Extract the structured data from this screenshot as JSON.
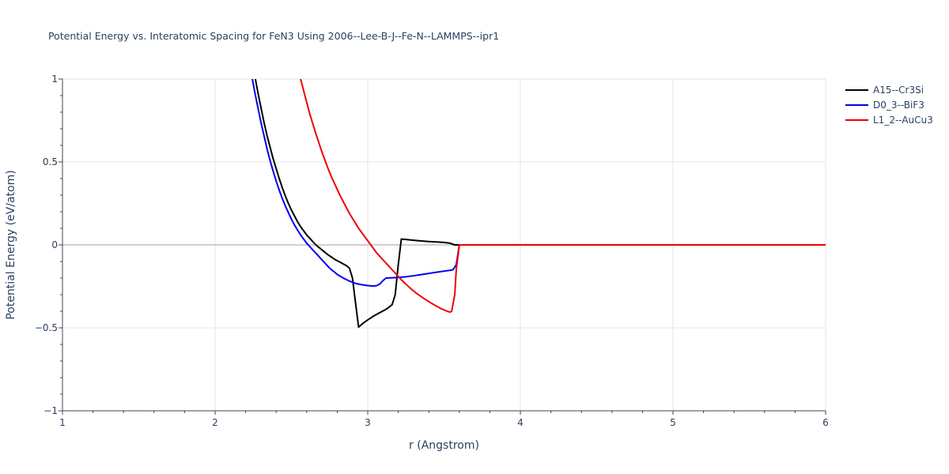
{
  "chart_data": {
    "type": "line",
    "title": "Potential Energy vs. Interatomic Spacing for FeN3 Using 2006--Lee-B-J--Fe-N--LAMMPS--ipr1",
    "xlabel": "r (Angstrom)",
    "ylabel": "Potential Energy (eV/atom)",
    "xlim": [
      1,
      6
    ],
    "ylim": [
      -1,
      1
    ],
    "xticks": [
      1,
      2,
      3,
      4,
      5,
      6
    ],
    "xtick_labels": [
      "1",
      "2",
      "3",
      "4",
      "5",
      "6"
    ],
    "yticks": [
      -1,
      -0.5,
      0,
      0.5,
      1
    ],
    "ytick_labels": [
      "−1",
      "−0.5",
      "0",
      "0.5",
      "1"
    ],
    "grid": true,
    "legend_position": "top-right",
    "series": [
      {
        "name": "A15--Cr3Si",
        "color": "#000000",
        "x": [
          2.26,
          2.28,
          2.3,
          2.32,
          2.34,
          2.36,
          2.38,
          2.4,
          2.42,
          2.44,
          2.46,
          2.48,
          2.5,
          2.52,
          2.54,
          2.56,
          2.58,
          2.6,
          2.62,
          2.64,
          2.66,
          2.68,
          2.7,
          2.72,
          2.74,
          2.76,
          2.78,
          2.8,
          2.82,
          2.84,
          2.86,
          2.88,
          2.9,
          2.92,
          2.94,
          2.96,
          2.98,
          3.0,
          3.02,
          3.04,
          3.06,
          3.08,
          3.1,
          3.12,
          3.14,
          3.16,
          3.18,
          3.2,
          3.22,
          3.25,
          3.3,
          3.35,
          3.4,
          3.45,
          3.5,
          3.54,
          3.57,
          3.6,
          3.7,
          4.0,
          4.5,
          5.0,
          5.5,
          6.0
        ],
        "y": [
          1.02,
          0.92,
          0.83,
          0.74,
          0.66,
          0.59,
          0.52,
          0.46,
          0.4,
          0.345,
          0.295,
          0.25,
          0.21,
          0.175,
          0.14,
          0.11,
          0.085,
          0.06,
          0.04,
          0.02,
          0.0,
          -0.015,
          -0.03,
          -0.045,
          -0.06,
          -0.072,
          -0.085,
          -0.095,
          -0.105,
          -0.115,
          -0.125,
          -0.14,
          -0.2,
          -0.35,
          -0.495,
          -0.48,
          -0.465,
          -0.452,
          -0.44,
          -0.428,
          -0.418,
          -0.408,
          -0.398,
          -0.388,
          -0.375,
          -0.36,
          -0.3,
          -0.12,
          0.035,
          0.033,
          0.028,
          0.024,
          0.02,
          0.018,
          0.015,
          0.01,
          0.0,
          0.0,
          0.0,
          0.0,
          0.0,
          0.0,
          0.0,
          0.0
        ]
      },
      {
        "name": "D0_3--BiF3",
        "color": "#0000ee",
        "x": [
          2.24,
          2.26,
          2.28,
          2.3,
          2.32,
          2.34,
          2.36,
          2.38,
          2.4,
          2.42,
          2.44,
          2.46,
          2.48,
          2.5,
          2.52,
          2.54,
          2.56,
          2.58,
          2.6,
          2.62,
          2.64,
          2.66,
          2.68,
          2.7,
          2.72,
          2.74,
          2.76,
          2.78,
          2.8,
          2.84,
          2.88,
          2.92,
          2.96,
          3.0,
          3.04,
          3.06,
          3.08,
          3.1,
          3.12,
          3.16,
          3.2,
          3.25,
          3.3,
          3.35,
          3.4,
          3.45,
          3.5,
          3.55,
          3.56,
          3.58,
          3.59,
          3.6,
          3.7,
          4.0,
          4.5,
          5.0,
          5.5,
          6.0
        ],
        "y": [
          1.02,
          0.92,
          0.83,
          0.74,
          0.66,
          0.58,
          0.51,
          0.445,
          0.385,
          0.33,
          0.28,
          0.235,
          0.195,
          0.155,
          0.12,
          0.09,
          0.06,
          0.035,
          0.01,
          -0.01,
          -0.03,
          -0.05,
          -0.07,
          -0.09,
          -0.11,
          -0.13,
          -0.148,
          -0.162,
          -0.178,
          -0.2,
          -0.218,
          -0.232,
          -0.24,
          -0.245,
          -0.248,
          -0.245,
          -0.235,
          -0.215,
          -0.2,
          -0.198,
          -0.196,
          -0.192,
          -0.186,
          -0.179,
          -0.172,
          -0.165,
          -0.158,
          -0.152,
          -0.148,
          -0.12,
          -0.06,
          0.0,
          0.0,
          0.0,
          0.0,
          0.0,
          0.0,
          0.0
        ]
      },
      {
        "name": "L1_2--AuCu3",
        "color": "#ee0000",
        "x": [
          2.56,
          2.58,
          2.6,
          2.62,
          2.64,
          2.66,
          2.68,
          2.7,
          2.72,
          2.74,
          2.76,
          2.78,
          2.8,
          2.82,
          2.84,
          2.86,
          2.88,
          2.9,
          2.92,
          2.94,
          2.96,
          2.98,
          3.0,
          3.02,
          3.04,
          3.06,
          3.08,
          3.1,
          3.12,
          3.14,
          3.16,
          3.18,
          3.2,
          3.22,
          3.24,
          3.26,
          3.28,
          3.3,
          3.32,
          3.34,
          3.36,
          3.38,
          3.4,
          3.42,
          3.44,
          3.46,
          3.48,
          3.5,
          3.52,
          3.54,
          3.55,
          3.57,
          3.58,
          3.6,
          3.7,
          4.0,
          4.5,
          5.0,
          5.5,
          6.0
        ],
        "y": [
          1.0,
          0.93,
          0.86,
          0.79,
          0.73,
          0.67,
          0.615,
          0.56,
          0.51,
          0.46,
          0.415,
          0.375,
          0.335,
          0.295,
          0.26,
          0.225,
          0.19,
          0.16,
          0.13,
          0.1,
          0.075,
          0.05,
          0.025,
          0.0,
          -0.025,
          -0.05,
          -0.07,
          -0.09,
          -0.11,
          -0.13,
          -0.15,
          -0.17,
          -0.19,
          -0.21,
          -0.228,
          -0.245,
          -0.262,
          -0.277,
          -0.292,
          -0.305,
          -0.318,
          -0.33,
          -0.342,
          -0.353,
          -0.364,
          -0.374,
          -0.384,
          -0.392,
          -0.4,
          -0.405,
          -0.4,
          -0.3,
          -0.15,
          0.0,
          0.0,
          0.0,
          0.0,
          0.0,
          0.0,
          0.0
        ]
      }
    ]
  }
}
